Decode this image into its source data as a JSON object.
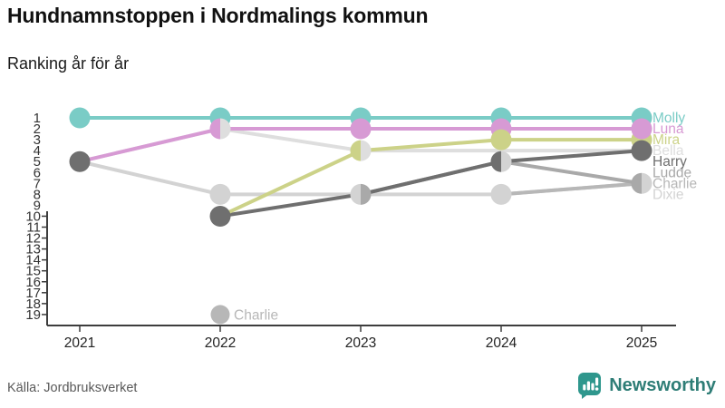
{
  "header": {
    "title": "Hundnamnstoppen i Nordmalings kommun",
    "subtitle": "Ranking år för år"
  },
  "footer": {
    "source": "Källa: Jordbruksverket",
    "brand": "Newsworthy",
    "brand_color": "#2f978d"
  },
  "chart_data": {
    "type": "line",
    "subtype": "bump-ranking",
    "title": "Hundnamnstoppen i Nordmalings kommun",
    "subtitle": "Ranking år för år",
    "source": "Källa: Jordbruksverket",
    "x": [
      2021,
      2022,
      2023,
      2024,
      2025
    ],
    "x_labels": [
      "2021",
      "2022",
      "2023",
      "2024",
      "2025"
    ],
    "y_ticks": [
      1,
      2,
      3,
      4,
      5,
      6,
      7,
      8,
      9,
      10,
      11,
      12,
      13,
      14,
      15,
      16,
      17,
      18,
      19
    ],
    "y_inverted": true,
    "legend_position": "right-edge-labels",
    "grid": false,
    "colors": {
      "teal": "#7accc6",
      "pink": "#d79ad4",
      "yellow": "#ccd288",
      "bella": "#dedede",
      "dark": "#6f6f6f",
      "ludde": "#a9a9a9",
      "charlie": "#b7b7b7",
      "dixie": "#d3d3d3"
    },
    "series": [
      {
        "name": "Dixie",
        "color": "dixie",
        "label_rank": 8,
        "ranks": [
          5,
          8,
          8,
          8,
          7
        ]
      },
      {
        "name": "Bella",
        "color": "bella",
        "label_rank": 4,
        "ranks": [
          5,
          2,
          4,
          4,
          4
        ]
      },
      {
        "name": "Charlie",
        "color": "charlie",
        "label_rank": 7,
        "ranks": [
          null,
          19,
          null,
          8,
          7
        ]
      },
      {
        "name": "Ludde",
        "color": "ludde",
        "label_rank": 6,
        "ranks": [
          null,
          null,
          8,
          5,
          7
        ]
      },
      {
        "name": "Harry",
        "color": "dark",
        "label_rank": 5,
        "ranks": [
          null,
          10,
          8,
          5,
          4
        ]
      },
      {
        "name": "Mira",
        "color": "yellow",
        "label_rank": 3,
        "ranks": [
          null,
          10,
          4,
          3,
          3
        ]
      },
      {
        "name": "Luna",
        "color": "pink",
        "label_rank": 2,
        "ranks": [
          5,
          2,
          2,
          2,
          2
        ]
      },
      {
        "name": "Molly",
        "color": "teal",
        "label_rank": 1,
        "ranks": [
          1,
          1,
          1,
          1,
          1
        ]
      }
    ],
    "dots": [
      {
        "year": 2021,
        "rank": 1,
        "fills": [
          "teal"
        ]
      },
      {
        "year": 2021,
        "rank": 5,
        "fills": [
          "dark"
        ]
      },
      {
        "year": 2022,
        "rank": 1,
        "fills": [
          "teal"
        ]
      },
      {
        "year": 2022,
        "rank": 2,
        "fills": [
          "pink",
          "bella"
        ]
      },
      {
        "year": 2022,
        "rank": 8,
        "fills": [
          "dixie"
        ]
      },
      {
        "year": 2022,
        "rank": 10,
        "fills": [
          "dark"
        ]
      },
      {
        "year": 2022,
        "rank": 19,
        "fills": [
          "charlie"
        ]
      },
      {
        "year": 2023,
        "rank": 1,
        "fills": [
          "teal"
        ]
      },
      {
        "year": 2023,
        "rank": 2,
        "fills": [
          "pink"
        ]
      },
      {
        "year": 2023,
        "rank": 4,
        "fills": [
          "yellow",
          "bella"
        ]
      },
      {
        "year": 2023,
        "rank": 8,
        "fills": [
          "dixie",
          "ludde"
        ]
      },
      {
        "year": 2024,
        "rank": 1,
        "fills": [
          "teal"
        ]
      },
      {
        "year": 2024,
        "rank": 2,
        "fills": [
          "pink"
        ]
      },
      {
        "year": 2024,
        "rank": 3,
        "fills": [
          "yellow"
        ]
      },
      {
        "year": 2024,
        "rank": 5,
        "fills": [
          "dark",
          "dixie"
        ]
      },
      {
        "year": 2024,
        "rank": 8,
        "fills": [
          "dixie"
        ]
      },
      {
        "year": 2025,
        "rank": 3,
        "fills": [
          "yellow"
        ]
      },
      {
        "year": 2025,
        "rank": 1,
        "fills": [
          "teal"
        ]
      },
      {
        "year": 2025,
        "rank": 2,
        "fills": [
          "pink"
        ]
      },
      {
        "year": 2025,
        "rank": 4,
        "fills": [
          "dark"
        ]
      },
      {
        "year": 2025,
        "rank": 7,
        "fills": [
          "ludde",
          "dixie"
        ]
      }
    ],
    "annotations": [
      {
        "text": "Charlie",
        "year": 2022,
        "rank": 19,
        "color": "charlie"
      }
    ],
    "right_labels": [
      "Molly",
      "Luna",
      "Mira",
      "Bella",
      "Harry",
      "Ludde",
      "Charlie",
      "Dixie"
    ]
  }
}
